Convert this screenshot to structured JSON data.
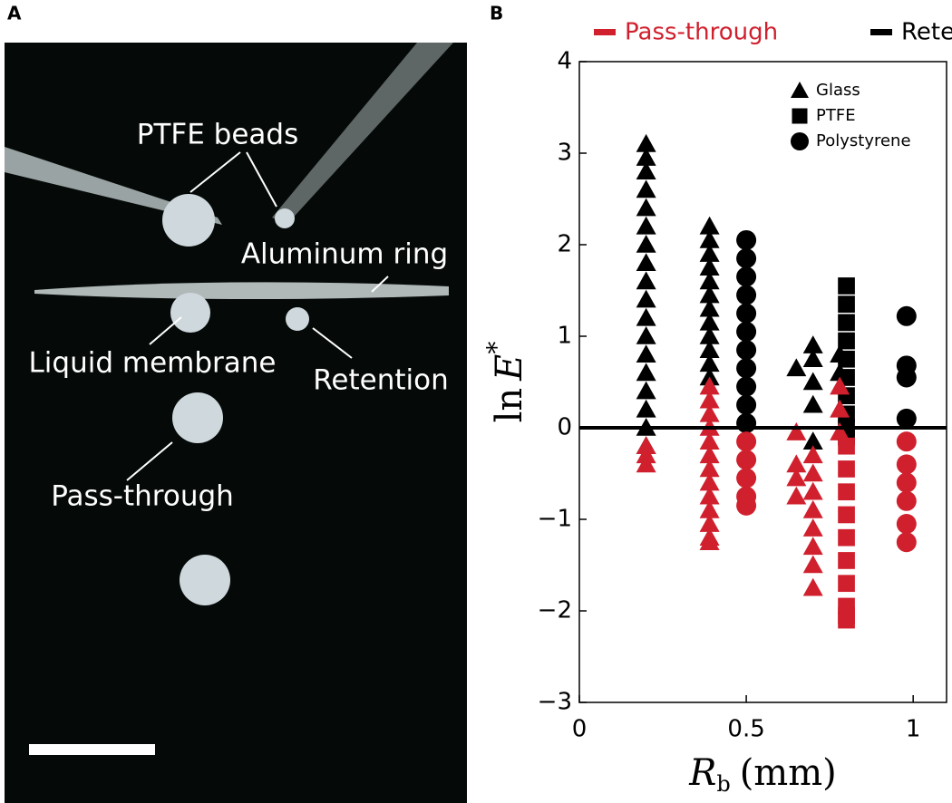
{
  "photo": {
    "panel_label": "A",
    "annotations": [
      "PTFE beads",
      "Aluminum ring",
      "Liquid membrane",
      "Retention",
      "Pass-through"
    ]
  },
  "chart_data": {
    "type": "scatter",
    "panel_label": "B",
    "ylabel": [
      "ln",
      "E",
      "*"
    ],
    "xlabel": [
      "R",
      "b",
      "(mm)"
    ],
    "xlim": [
      0,
      1.1
    ],
    "ylim": [
      -3,
      4
    ],
    "xticks": [
      0,
      0.5,
      1
    ],
    "yticks": [
      {
        "value": -3,
        "label": "−3"
      },
      {
        "value": -2,
        "label": "−2"
      },
      {
        "value": -1,
        "label": "−1"
      },
      0,
      1,
      2,
      3,
      4
    ],
    "reference_line": 0,
    "color_legend": [
      {
        "name": "Pass-through",
        "color": "#d0202e"
      },
      {
        "name": "Retention",
        "color": "#000000"
      }
    ],
    "marker_legend": [
      {
        "name": "Glass",
        "marker": "triangle"
      },
      {
        "name": "PTFE",
        "marker": "square"
      },
      {
        "name": "Polystyrene",
        "marker": "circle"
      }
    ],
    "series": [
      {
        "marker": "triangle",
        "color": "#000000",
        "x": [
          0.2,
          0.2,
          0.2,
          0.2,
          0.2,
          0.2,
          0.2,
          0.2,
          0.2,
          0.2,
          0.2,
          0.2,
          0.2,
          0.2,
          0.2,
          0.2,
          0.2,
          0.2,
          0.39,
          0.39,
          0.39,
          0.39,
          0.39,
          0.39,
          0.39,
          0.39,
          0.39,
          0.39,
          0.39,
          0.39,
          0.65,
          0.7,
          0.7,
          0.7,
          0.7,
          0.7,
          0.78,
          0.78
        ],
        "values": [
          3.1,
          2.95,
          2.8,
          2.6,
          2.4,
          2.2,
          2.0,
          1.8,
          1.6,
          1.4,
          1.2,
          1.0,
          0.8,
          0.6,
          0.4,
          0.2,
          0.0,
          -0.2,
          2.2,
          2.05,
          1.9,
          1.75,
          1.6,
          1.45,
          1.3,
          1.15,
          1.0,
          0.85,
          0.7,
          0.55,
          0.65,
          0.9,
          0.75,
          0.5,
          0.25,
          -0.15,
          0.8,
          0.6
        ]
      },
      {
        "marker": "square",
        "color": "#000000",
        "x": [
          0.8,
          0.8,
          0.8,
          0.8,
          0.8,
          0.8,
          0.8,
          0.8,
          0.8,
          0.8
        ],
        "values": [
          1.55,
          1.35,
          1.15,
          0.95,
          0.75,
          0.55,
          0.35,
          0.15,
          0.0,
          -0.1
        ]
      },
      {
        "marker": "circle",
        "color": "#000000",
        "x": [
          0.5,
          0.5,
          0.5,
          0.5,
          0.5,
          0.5,
          0.5,
          0.5,
          0.5,
          0.5,
          0.5,
          0.98,
          0.98,
          0.98,
          0.98
        ],
        "values": [
          2.05,
          1.85,
          1.65,
          1.45,
          1.25,
          1.05,
          0.85,
          0.65,
          0.45,
          0.25,
          0.05,
          1.22,
          0.68,
          0.55,
          0.1
        ]
      },
      {
        "marker": "triangle",
        "color": "#d0202e",
        "x": [
          0.2,
          0.2,
          0.2,
          0.39,
          0.39,
          0.39,
          0.39,
          0.39,
          0.39,
          0.39,
          0.39,
          0.39,
          0.39,
          0.39,
          0.39,
          0.39,
          0.65,
          0.65,
          0.65,
          0.65,
          0.7,
          0.7,
          0.7,
          0.7,
          0.7,
          0.7,
          0.7,
          0.7,
          0.78,
          0.78,
          0.78
        ],
        "values": [
          -0.2,
          -0.3,
          -0.4,
          0.45,
          0.3,
          0.15,
          0.0,
          -0.15,
          -0.3,
          -0.45,
          -0.6,
          -0.75,
          -0.9,
          -1.05,
          -1.2,
          -1.25,
          -0.05,
          -0.4,
          -0.55,
          -0.75,
          -0.3,
          -0.5,
          -0.7,
          -0.9,
          -1.1,
          -1.3,
          -1.5,
          -1.75,
          0.45,
          0.2,
          -0.05
        ]
      },
      {
        "marker": "square",
        "color": "#d0202e",
        "x": [
          0.8,
          0.8,
          0.8,
          0.8,
          0.8,
          0.8,
          0.8,
          0.8,
          0.8,
          0.8
        ],
        "values": [
          -0.2,
          -0.45,
          -0.7,
          -0.95,
          -1.2,
          -1.45,
          -1.7,
          -1.95,
          -2.05,
          -2.1
        ]
      },
      {
        "marker": "circle",
        "color": "#d0202e",
        "x": [
          0.5,
          0.5,
          0.5,
          0.5,
          0.5,
          0.98,
          0.98,
          0.98,
          0.98,
          0.98,
          0.98
        ],
        "values": [
          -0.15,
          -0.35,
          -0.55,
          -0.75,
          -0.85,
          -0.15,
          -0.4,
          -0.6,
          -0.8,
          -1.05,
          -1.25
        ]
      }
    ]
  }
}
